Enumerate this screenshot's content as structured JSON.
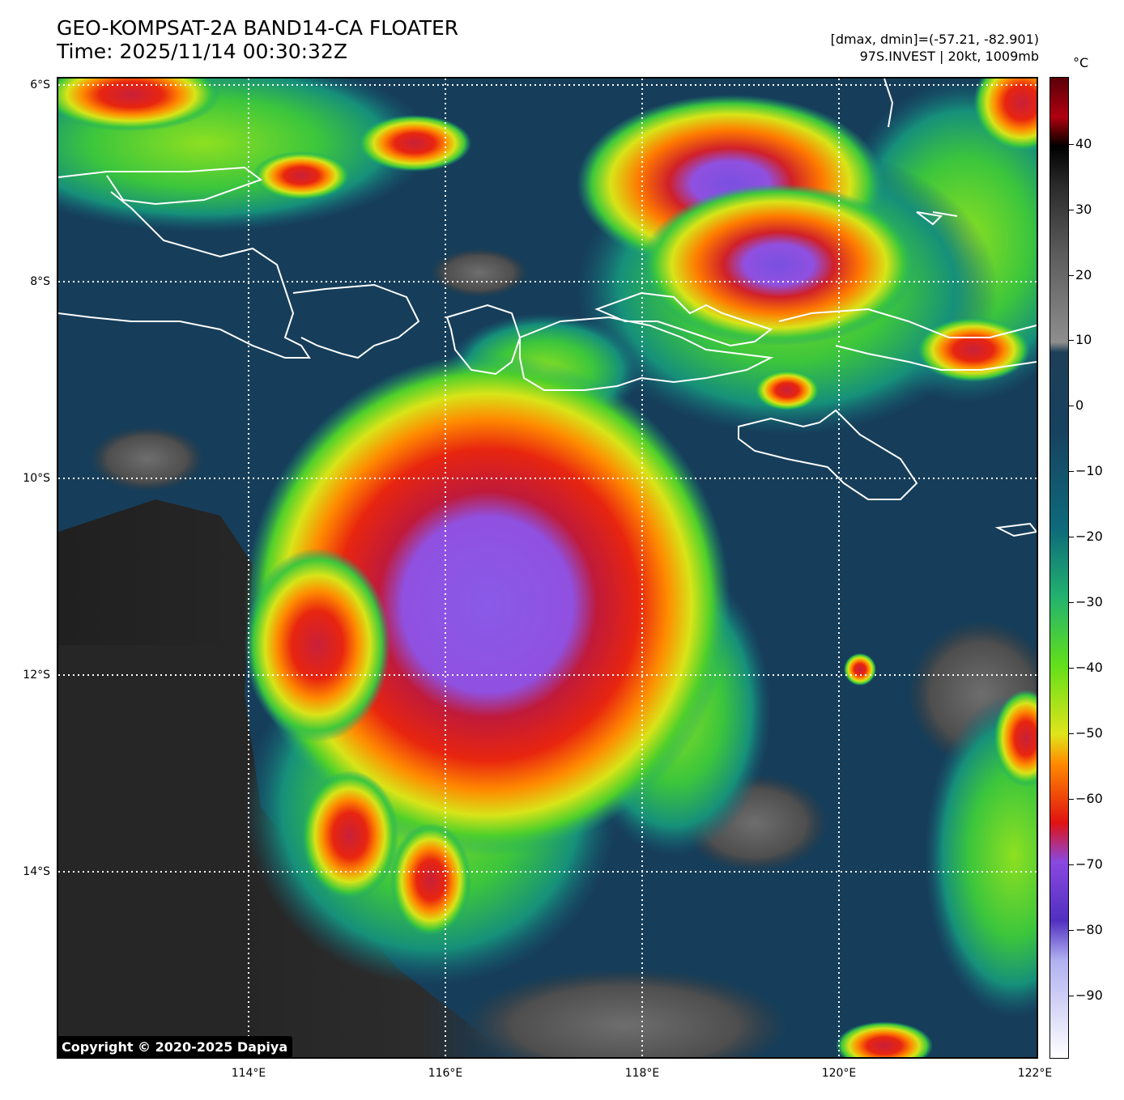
{
  "header": {
    "title_line1": "GEO-KOMPSAT-2A BAND14-CA FLOATER",
    "title_line2": "Time: 2025/11/14 00:30:32Z",
    "meta_line1": "[dmax, dmin]=(-57.21, -82.901)",
    "meta_line2": "97S.INVEST | 20kt, 1009mb"
  },
  "map": {
    "lat_labels": [
      "6°S",
      "8°S",
      "10°S",
      "12°S",
      "14°S"
    ],
    "lon_labels": [
      "114°E",
      "116°E",
      "118°E",
      "120°E",
      "122°E"
    ],
    "lat_range": [
      -16,
      -6
    ],
    "lon_range": [
      112,
      122
    ],
    "gridlines": "dotted white"
  },
  "colorbar": {
    "unit": "°C",
    "ticks": [
      "40",
      "30",
      "20",
      "10",
      "0",
      "−10",
      "−20",
      "−30",
      "−40",
      "−50",
      "−60",
      "−70",
      "−80",
      "−90"
    ]
  },
  "copyright": "Copyright © 2020-2025 Dapiya"
}
